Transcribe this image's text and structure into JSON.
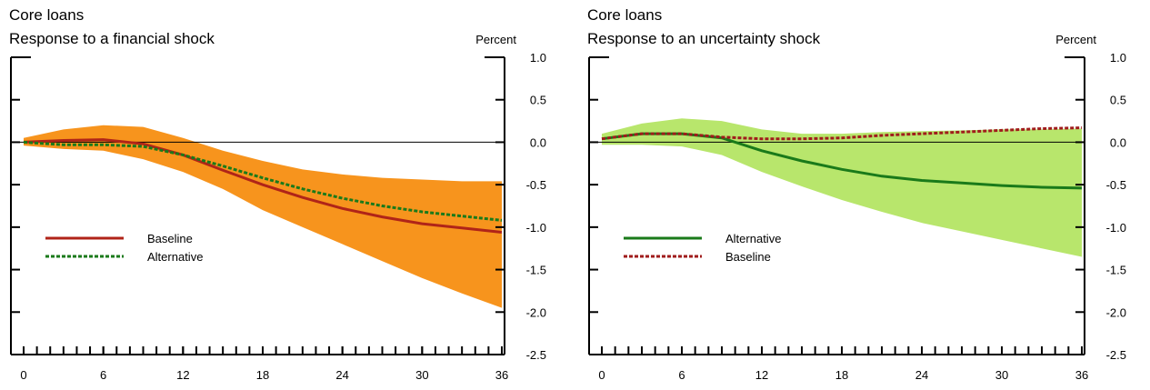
{
  "chart_data": [
    {
      "type": "line",
      "title": "Core loans",
      "subtitle": "Response to a financial shock",
      "y_label": "Percent",
      "x": [
        0,
        3,
        6,
        9,
        12,
        15,
        18,
        21,
        24,
        27,
        30,
        33,
        36
      ],
      "xlim": [
        0,
        36
      ],
      "xticks": [
        0,
        6,
        12,
        18,
        24,
        30,
        36
      ],
      "ylim": [
        -2.5,
        1.0
      ],
      "yticks": [
        {
          "value": 1.0,
          "label": "1.0"
        },
        0.5,
        {
          "value": 0.0,
          "label": "0.0"
        },
        -0.5,
        {
          "value": -1.0,
          "label": "-1.0"
        },
        -1.5,
        {
          "value": -2.0,
          "label": "-2.0"
        },
        -2.5
      ],
      "legend": "center left",
      "band": {
        "color": "#f7941d",
        "upper": [
          0.05,
          0.15,
          0.2,
          0.18,
          0.05,
          -0.1,
          -0.22,
          -0.32,
          -0.38,
          -0.42,
          -0.44,
          -0.46,
          -0.46
        ],
        "lower": [
          -0.04,
          -0.08,
          -0.1,
          -0.2,
          -0.35,
          -0.55,
          -0.8,
          -1.0,
          -1.2,
          -1.4,
          -1.6,
          -1.78,
          -1.95
        ]
      },
      "series": [
        {
          "name": "Baseline",
          "color": "#b02418",
          "dash": false,
          "values": [
            0,
            0.02,
            0.03,
            -0.02,
            -0.15,
            -0.33,
            -0.5,
            -0.65,
            -0.78,
            -0.88,
            -0.96,
            -1.01,
            -1.06
          ]
        },
        {
          "name": "Alternative",
          "color": "#1a7a1a",
          "dash": true,
          "values": [
            0,
            -0.03,
            -0.03,
            -0.05,
            -0.15,
            -0.28,
            -0.42,
            -0.55,
            -0.66,
            -0.75,
            -0.82,
            -0.87,
            -0.92
          ]
        }
      ]
    },
    {
      "type": "line",
      "title": "Core loans",
      "subtitle": "Response to an uncertainty shock",
      "y_label": "Percent",
      "x": [
        0,
        3,
        6,
        9,
        12,
        15,
        18,
        21,
        24,
        27,
        30,
        33,
        36
      ],
      "xlim": [
        0,
        36
      ],
      "xticks": [
        0,
        6,
        12,
        18,
        24,
        30,
        36
      ],
      "ylim": [
        -2.5,
        1.0
      ],
      "yticks": [
        {
          "value": 1.0,
          "label": "1.0"
        },
        0.5,
        {
          "value": 0.0,
          "label": "0.0"
        },
        -0.5,
        {
          "value": -1.0,
          "label": "-1.0"
        },
        -1.5,
        {
          "value": -2.0,
          "label": "-2.0"
        },
        -2.5
      ],
      "legend": "center left",
      "band": {
        "color": "#b8e66c",
        "upper": [
          0.1,
          0.22,
          0.28,
          0.25,
          0.15,
          0.1,
          0.1,
          0.12,
          0.13,
          0.14,
          0.15,
          0.15,
          0.16
        ],
        "lower": [
          -0.03,
          -0.03,
          -0.05,
          -0.15,
          -0.35,
          -0.52,
          -0.68,
          -0.82,
          -0.95,
          -1.05,
          -1.15,
          -1.25,
          -1.35
        ]
      },
      "series": [
        {
          "name": "Alternative",
          "color": "#1a7a1a",
          "dash": false,
          "values": [
            0.04,
            0.1,
            0.1,
            0.05,
            -0.1,
            -0.22,
            -0.32,
            -0.4,
            -0.45,
            -0.48,
            -0.51,
            -0.53,
            -0.54
          ]
        },
        {
          "name": "Baseline",
          "color": "#a01c1c",
          "dash": true,
          "values": [
            0.04,
            0.1,
            0.1,
            0.06,
            0.04,
            0.04,
            0.05,
            0.08,
            0.1,
            0.12,
            0.14,
            0.16,
            0.17
          ]
        }
      ]
    }
  ]
}
